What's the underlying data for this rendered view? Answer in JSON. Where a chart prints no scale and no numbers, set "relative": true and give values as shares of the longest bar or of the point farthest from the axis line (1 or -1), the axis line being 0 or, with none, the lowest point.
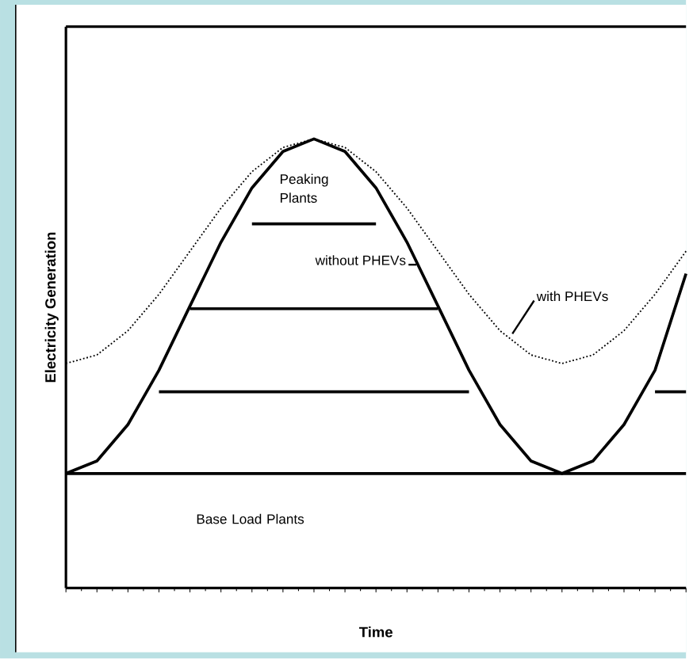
{
  "chart_data": {
    "type": "line",
    "relative": true,
    "xlabel": "Time",
    "ylabel": "Electricity Generation",
    "tick_labels": false,
    "categories": [
      null,
      null,
      null,
      null,
      null,
      null,
      null,
      null,
      null,
      null,
      null,
      null,
      null,
      null,
      null,
      null,
      null,
      null,
      null,
      null,
      null
    ],
    "series": [
      {
        "name": "without PHEVs",
        "color": "#000000",
        "line_style": "solid",
        "values": [
          0.255,
          0.283,
          0.364,
          0.485,
          0.628,
          0.77,
          0.891,
          0.972,
          1.0,
          0.972,
          0.891,
          0.77,
          0.628,
          0.485,
          0.364,
          0.283,
          0.255,
          0.283,
          0.364,
          0.485,
          0.7
        ]
      },
      {
        "name": "with PHEVs",
        "color": "#000000",
        "line_style": "dotted",
        "values": [
          0.5,
          0.519,
          0.573,
          0.654,
          0.75,
          0.846,
          0.927,
          0.981,
          1.0,
          0.981,
          0.927,
          0.846,
          0.75,
          0.654,
          0.573,
          0.519,
          0.5,
          0.519,
          0.573,
          0.654,
          0.75
        ]
      },
      {
        "color": "#000000",
        "line_style": "solid",
        "values": [
          0.255,
          0.255,
          0.255,
          0.255,
          0.255,
          0.255,
          0.255,
          0.255,
          0.255,
          0.255,
          0.255,
          0.255,
          0.255,
          0.255,
          0.255,
          0.255,
          0.255,
          0.255,
          0.255,
          0.255,
          0.255
        ]
      },
      {
        "color": "#000000",
        "line_style": "solid",
        "values": [
          null,
          null,
          null,
          0.437,
          0.437,
          0.437,
          0.437,
          0.437,
          0.437,
          0.437,
          0.437,
          0.437,
          0.437,
          0.437,
          null,
          null,
          null,
          null,
          null,
          0.437,
          0.437
        ]
      },
      {
        "color": "#000000",
        "line_style": "solid",
        "values": [
          null,
          null,
          null,
          null,
          0.622,
          0.622,
          0.622,
          0.622,
          0.622,
          0.622,
          0.622,
          0.622,
          0.622,
          null,
          null,
          null,
          null,
          null,
          null,
          null,
          null
        ]
      },
      {
        "color": "#000000",
        "line_style": "solid",
        "values": [
          null,
          null,
          null,
          null,
          null,
          null,
          0.811,
          0.811,
          0.811,
          0.811,
          0.811,
          null,
          null,
          null,
          null,
          null,
          null,
          null,
          null,
          null,
          null
        ]
      }
    ],
    "annotations": [
      "Peaking Plants",
      "Base Load Plants"
    ]
  }
}
